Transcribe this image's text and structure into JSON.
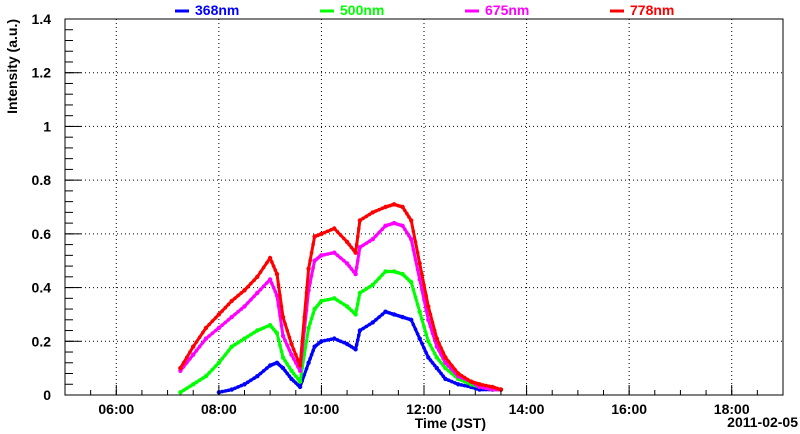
{
  "chart_data": {
    "type": "scatter",
    "xlabel": "Time (JST)",
    "ylabel": "Intensity (a.u.)",
    "date_label": "2011-02-05",
    "xlim": [
      "05:00",
      "19:00"
    ],
    "ylim": [
      0,
      1.4
    ],
    "grid": true,
    "legend_position": "top",
    "x_ticks": [
      "06:00",
      "08:00",
      "10:00",
      "12:00",
      "14:00",
      "16:00",
      "18:00"
    ],
    "y_ticks": [
      "0",
      "0.2",
      "0.4",
      "0.6",
      "0.8",
      "1",
      "1.2",
      "1.4"
    ],
    "series": [
      {
        "name": "368nm",
        "color": "#0000ff",
        "x": [
          "08:00",
          "08:15",
          "08:30",
          "08:45",
          "09:00",
          "09:08",
          "09:15",
          "09:25",
          "09:35",
          "09:45",
          "09:52",
          "10:00",
          "10:15",
          "10:30",
          "10:40",
          "10:45",
          "11:00",
          "11:15",
          "11:25",
          "11:35",
          "11:45",
          "11:55",
          "12:05",
          "12:15",
          "12:25",
          "12:40",
          "12:55",
          "13:05",
          "13:20",
          "13:30"
        ],
        "y": [
          0.01,
          0.02,
          0.04,
          0.07,
          0.11,
          0.12,
          0.1,
          0.06,
          0.03,
          0.12,
          0.18,
          0.2,
          0.21,
          0.19,
          0.17,
          0.24,
          0.27,
          0.31,
          0.3,
          0.29,
          0.28,
          0.21,
          0.14,
          0.1,
          0.06,
          0.04,
          0.03,
          0.02,
          0.02,
          0.02
        ]
      },
      {
        "name": "500nm",
        "color": "#00ff00",
        "x": [
          "07:15",
          "07:30",
          "07:45",
          "08:00",
          "08:15",
          "08:30",
          "08:45",
          "09:00",
          "09:08",
          "09:15",
          "09:25",
          "09:35",
          "09:45",
          "09:52",
          "10:00",
          "10:15",
          "10:30",
          "10:40",
          "10:45",
          "11:00",
          "11:15",
          "11:25",
          "11:35",
          "11:45",
          "11:55",
          "12:05",
          "12:15",
          "12:25",
          "12:40",
          "12:55",
          "13:05",
          "13:20",
          "13:30"
        ],
        "y": [
          0.01,
          0.04,
          0.07,
          0.12,
          0.18,
          0.21,
          0.24,
          0.26,
          0.23,
          0.14,
          0.09,
          0.05,
          0.25,
          0.32,
          0.35,
          0.36,
          0.33,
          0.3,
          0.38,
          0.41,
          0.46,
          0.46,
          0.45,
          0.42,
          0.31,
          0.2,
          0.14,
          0.1,
          0.06,
          0.04,
          0.03,
          0.02,
          0.02
        ]
      },
      {
        "name": "675nm",
        "color": "#ff00ff",
        "x": [
          "07:15",
          "07:30",
          "07:45",
          "08:00",
          "08:15",
          "08:30",
          "08:45",
          "09:00",
          "09:08",
          "09:15",
          "09:25",
          "09:35",
          "09:45",
          "09:52",
          "10:00",
          "10:15",
          "10:30",
          "10:40",
          "10:45",
          "11:00",
          "11:15",
          "11:25",
          "11:35",
          "11:45",
          "11:55",
          "12:05",
          "12:15",
          "12:25",
          "12:40",
          "12:55",
          "13:05",
          "13:20",
          "13:30"
        ],
        "y": [
          0.09,
          0.15,
          0.21,
          0.25,
          0.29,
          0.33,
          0.38,
          0.43,
          0.37,
          0.22,
          0.15,
          0.09,
          0.39,
          0.5,
          0.52,
          0.53,
          0.49,
          0.45,
          0.55,
          0.58,
          0.63,
          0.64,
          0.63,
          0.58,
          0.43,
          0.28,
          0.18,
          0.12,
          0.07,
          0.05,
          0.03,
          0.02,
          0.02
        ]
      },
      {
        "name": "778nm",
        "color": "#ff0000",
        "x": [
          "07:15",
          "07:30",
          "07:45",
          "08:00",
          "08:15",
          "08:30",
          "08:45",
          "09:00",
          "09:08",
          "09:15",
          "09:25",
          "09:35",
          "09:45",
          "09:52",
          "10:00",
          "10:15",
          "10:30",
          "10:40",
          "10:45",
          "11:00",
          "11:15",
          "11:25",
          "11:35",
          "11:45",
          "11:55",
          "12:05",
          "12:15",
          "12:25",
          "12:40",
          "12:55",
          "13:05",
          "13:20",
          "13:30"
        ],
        "y": [
          0.1,
          0.18,
          0.25,
          0.3,
          0.35,
          0.39,
          0.44,
          0.51,
          0.45,
          0.29,
          0.19,
          0.11,
          0.47,
          0.59,
          0.6,
          0.62,
          0.57,
          0.53,
          0.65,
          0.68,
          0.7,
          0.71,
          0.7,
          0.65,
          0.49,
          0.33,
          0.21,
          0.14,
          0.08,
          0.05,
          0.04,
          0.03,
          0.02
        ]
      }
    ]
  }
}
